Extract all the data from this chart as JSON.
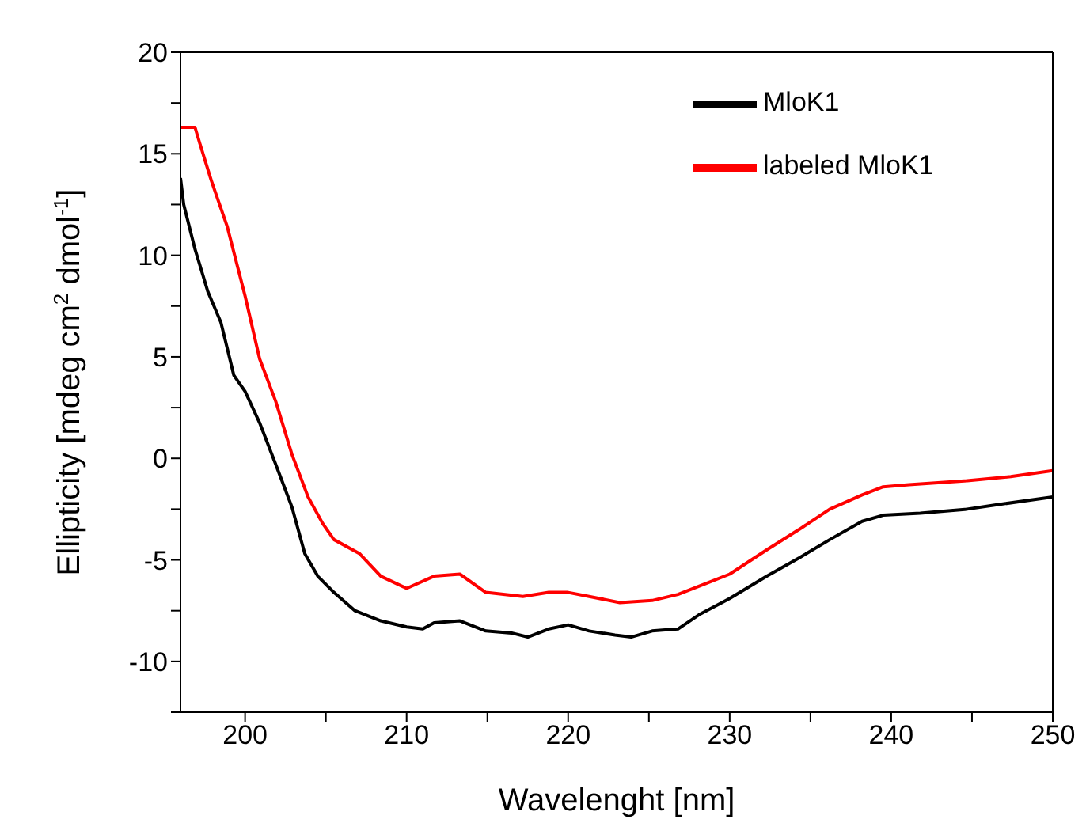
{
  "chart_data": {
    "type": "line",
    "xlabel": "Wavelenght [nm]",
    "ylabel": "Ellipticity [mdeg cm$^{2}$ dmol$^{-1}$]",
    "xlim": [
      196,
      250
    ],
    "ylim": [
      -12.5,
      20
    ],
    "xticks": [
      200,
      {
        "value": 205,
        "label": null
      },
      210,
      {
        "value": 215,
        "label": null
      },
      220,
      {
        "value": 225,
        "label": null
      },
      230,
      {
        "value": 235,
        "label": null
      },
      240,
      {
        "value": 245,
        "label": null
      },
      250
    ],
    "yticks": [
      {
        "value": -12.5,
        "label": null
      },
      -10,
      {
        "value": -7.5,
        "label": null
      },
      -5,
      {
        "value": -2.5,
        "label": null
      },
      0,
      {
        "value": 2.5,
        "label": null
      },
      5,
      {
        "value": 7.5,
        "label": null
      },
      10,
      {
        "value": 12.5,
        "label": null
      },
      15,
      {
        "value": 17.5,
        "label": null
      },
      20
    ],
    "legend": "top right",
    "marker": "none",
    "line_style": "solid",
    "series": [
      {
        "name": "MloK1",
        "color": "#000000",
        "x": [
          196,
          196.2,
          196.9,
          197.7,
          198.5,
          199.3,
          200,
          200.9,
          201.9,
          202.9,
          203.7,
          204.5,
          205.5,
          206.8,
          208.4,
          210,
          211,
          211.7,
          213.3,
          214.9,
          216.5,
          217.5,
          218.8,
          220,
          221.3,
          222.9,
          223.9,
          225.2,
          226.8,
          228.1,
          230,
          232.3,
          234.3,
          236.2,
          238.2,
          239.5,
          241.8,
          244.7,
          246.4,
          250
        ],
        "values": [
          13.8,
          12.5,
          10.3,
          8.2,
          6.7,
          4.1,
          3.3,
          1.75,
          -0.3,
          -2.4,
          -4.7,
          -5.8,
          -6.6,
          -7.5,
          -8.0,
          -8.3,
          -8.4,
          -8.1,
          -8.0,
          -8.5,
          -8.6,
          -8.8,
          -8.4,
          -8.2,
          -8.5,
          -8.7,
          -8.8,
          -8.5,
          -8.4,
          -7.7,
          -6.9,
          -5.8,
          -4.9,
          -4.0,
          -3.1,
          -2.8,
          -2.7,
          -2.5,
          -2.3,
          -1.9
        ]
      },
      {
        "name": "labeled MloK1",
        "color": "#ff0000",
        "x": [
          196,
          196.9,
          197.2,
          197.9,
          198.9,
          200,
          200.9,
          201.9,
          202.9,
          203.9,
          204.8,
          205.5,
          207.1,
          208.4,
          210,
          211.7,
          213.3,
          214.9,
          217.2,
          218.8,
          220,
          221.3,
          223.2,
          225.2,
          226.8,
          228.4,
          230,
          232.3,
          234.3,
          236.2,
          238.2,
          239.5,
          241.1,
          244.7,
          247.4,
          250
        ],
        "values": [
          16.3,
          16.3,
          15.5,
          13.7,
          11.4,
          8.0,
          4.9,
          2.8,
          0.2,
          -1.9,
          -3.2,
          -4.0,
          -4.7,
          -5.8,
          -6.4,
          -5.8,
          -5.7,
          -6.6,
          -6.8,
          -6.6,
          -6.6,
          -6.8,
          -7.1,
          -7.0,
          -6.7,
          -6.2,
          -5.7,
          -4.5,
          -3.5,
          -2.5,
          -1.8,
          -1.4,
          -1.3,
          -1.1,
          -0.9,
          -0.6
        ]
      }
    ]
  }
}
